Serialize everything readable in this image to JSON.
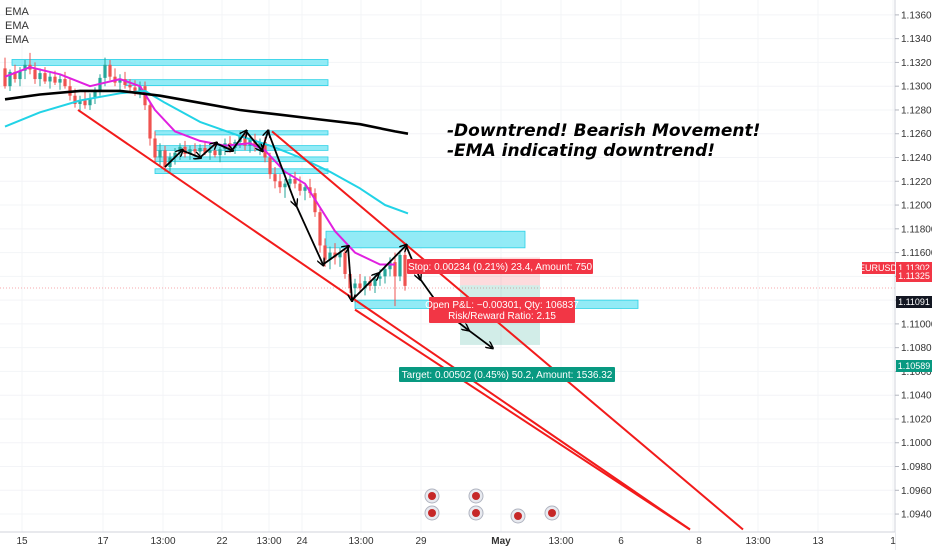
{
  "chart_data": {
    "type": "candlestick",
    "symbol": "EURUSD",
    "legend": [
      "EMA",
      "EMA",
      "EMA"
    ],
    "y_axis": {
      "ticks": [
        "1.13600",
        "1.13400",
        "1.13200",
        "1.13000",
        "1.12800",
        "1.12600",
        "1.12400",
        "1.12200",
        "1.12000",
        "1.11800",
        "1.11600",
        "1.11400",
        "1.11200",
        "1.11000",
        "1.10800",
        "1.10600",
        "1.10400",
        "1.10200",
        "1.10000",
        "1.09800",
        "1.09600",
        "1.09400"
      ],
      "ylim": [
        1.0935,
        1.137
      ]
    },
    "x_axis": {
      "ticks": [
        "15",
        "17",
        "13:00",
        "22",
        "13:00",
        "24",
        "13:00",
        "29",
        "May",
        "13:00",
        "6",
        "8",
        "13:00",
        "13",
        "1"
      ]
    },
    "price_tags": [
      {
        "label": "EURUSD",
        "value": "1.11302",
        "color": "#f23645"
      },
      {
        "label": "",
        "value": "1.11325",
        "color": "#f23645"
      },
      {
        "label": "",
        "value": "1.11091",
        "color": "#131722"
      },
      {
        "label": "",
        "value": "1.10589",
        "color": "#089981"
      }
    ],
    "annotations": [
      "-Downtrend! Bearish Movement!",
      "-EMA indicating downtrend!"
    ],
    "position": {
      "stop_text": "Stop: 0.00234 (0.21%) 23.4, Amount: 750",
      "pnl_text": "Open P&L: −0.00301, Qty: 106837",
      "rr_text": "Risk/Reward Ratio: 2.15",
      "target_text": "Target: 0.00502 (0.45%) 50.2, Amount: 1536.32",
      "entry": 1.11325,
      "stop": 1.11559,
      "target": 1.10823
    },
    "candles": [
      {
        "x": 5,
        "o": 1.1315,
        "h": 1.1324,
        "l": 1.1298,
        "c": 1.13
      },
      {
        "x": 10,
        "o": 1.13,
        "h": 1.1314,
        "l": 1.1296,
        "c": 1.1312
      },
      {
        "x": 15,
        "o": 1.1312,
        "h": 1.1318,
        "l": 1.1303,
        "c": 1.1306
      },
      {
        "x": 20,
        "o": 1.1306,
        "h": 1.1316,
        "l": 1.13,
        "c": 1.1313
      },
      {
        "x": 25,
        "o": 1.1313,
        "h": 1.1322,
        "l": 1.1306,
        "c": 1.1318
      },
      {
        "x": 30,
        "o": 1.1318,
        "h": 1.1328,
        "l": 1.131,
        "c": 1.1314
      },
      {
        "x": 35,
        "o": 1.1314,
        "h": 1.132,
        "l": 1.1302,
        "c": 1.1306
      },
      {
        "x": 40,
        "o": 1.1306,
        "h": 1.1315,
        "l": 1.13,
        "c": 1.1311
      },
      {
        "x": 45,
        "o": 1.1311,
        "h": 1.1316,
        "l": 1.1302,
        "c": 1.1304
      },
      {
        "x": 50,
        "o": 1.1304,
        "h": 1.1312,
        "l": 1.1298,
        "c": 1.1308
      },
      {
        "x": 55,
        "o": 1.1308,
        "h": 1.1313,
        "l": 1.1301,
        "c": 1.1303
      },
      {
        "x": 60,
        "o": 1.1303,
        "h": 1.131,
        "l": 1.1297,
        "c": 1.1306
      },
      {
        "x": 65,
        "o": 1.1306,
        "h": 1.1312,
        "l": 1.1298,
        "c": 1.13
      },
      {
        "x": 70,
        "o": 1.13,
        "h": 1.1306,
        "l": 1.1288,
        "c": 1.1292
      },
      {
        "x": 75,
        "o": 1.1292,
        "h": 1.1298,
        "l": 1.1282,
        "c": 1.1285
      },
      {
        "x": 80,
        "o": 1.1285,
        "h": 1.1292,
        "l": 1.1278,
        "c": 1.1288
      },
      {
        "x": 85,
        "o": 1.1288,
        "h": 1.1296,
        "l": 1.1281,
        "c": 1.1284
      },
      {
        "x": 90,
        "o": 1.1284,
        "h": 1.1294,
        "l": 1.128,
        "c": 1.129
      },
      {
        "x": 95,
        "o": 1.129,
        "h": 1.1299,
        "l": 1.1285,
        "c": 1.1296
      },
      {
        "x": 100,
        "o": 1.1296,
        "h": 1.131,
        "l": 1.1292,
        "c": 1.1307
      },
      {
        "x": 105,
        "o": 1.1307,
        "h": 1.1324,
        "l": 1.13,
        "c": 1.1318
      },
      {
        "x": 110,
        "o": 1.1318,
        "h": 1.1322,
        "l": 1.1305,
        "c": 1.1308
      },
      {
        "x": 115,
        "o": 1.1308,
        "h": 1.1315,
        "l": 1.13,
        "c": 1.1303
      },
      {
        "x": 120,
        "o": 1.1303,
        "h": 1.131,
        "l": 1.1296,
        "c": 1.1306
      },
      {
        "x": 125,
        "o": 1.1306,
        "h": 1.1312,
        "l": 1.1298,
        "c": 1.1301
      },
      {
        "x": 130,
        "o": 1.1301,
        "h": 1.1306,
        "l": 1.1295,
        "c": 1.1299
      },
      {
        "x": 135,
        "o": 1.1299,
        "h": 1.1305,
        "l": 1.1292,
        "c": 1.1296
      },
      {
        "x": 140,
        "o": 1.1296,
        "h": 1.1304,
        "l": 1.129,
        "c": 1.13
      },
      {
        "x": 145,
        "o": 1.13,
        "h": 1.1304,
        "l": 1.128,
        "c": 1.1284
      },
      {
        "x": 150,
        "o": 1.1284,
        "h": 1.1288,
        "l": 1.125,
        "c": 1.1256
      },
      {
        "x": 155,
        "o": 1.1256,
        "h": 1.1262,
        "l": 1.1236,
        "c": 1.124
      },
      {
        "x": 160,
        "o": 1.124,
        "h": 1.1252,
        "l": 1.1232,
        "c": 1.1246
      },
      {
        "x": 165,
        "o": 1.1246,
        "h": 1.125,
        "l": 1.1228,
        "c": 1.1232
      },
      {
        "x": 170,
        "o": 1.1232,
        "h": 1.1244,
        "l": 1.1228,
        "c": 1.124
      },
      {
        "x": 175,
        "o": 1.124,
        "h": 1.1248,
        "l": 1.1234,
        "c": 1.1244
      },
      {
        "x": 180,
        "o": 1.1244,
        "h": 1.1252,
        "l": 1.1238,
        "c": 1.1249
      },
      {
        "x": 185,
        "o": 1.1249,
        "h": 1.1254,
        "l": 1.124,
        "c": 1.1243
      },
      {
        "x": 190,
        "o": 1.1243,
        "h": 1.125,
        "l": 1.1238,
        "c": 1.1247
      },
      {
        "x": 195,
        "o": 1.1247,
        "h": 1.1252,
        "l": 1.1241,
        "c": 1.1245
      },
      {
        "x": 200,
        "o": 1.1245,
        "h": 1.1251,
        "l": 1.124,
        "c": 1.1248
      },
      {
        "x": 205,
        "o": 1.1248,
        "h": 1.1253,
        "l": 1.1242,
        "c": 1.1244
      },
      {
        "x": 210,
        "o": 1.1244,
        "h": 1.125,
        "l": 1.1238,
        "c": 1.1246
      },
      {
        "x": 215,
        "o": 1.1246,
        "h": 1.1252,
        "l": 1.124,
        "c": 1.1242
      },
      {
        "x": 220,
        "o": 1.1242,
        "h": 1.1249,
        "l": 1.1236,
        "c": 1.1247
      },
      {
        "x": 225,
        "o": 1.1247,
        "h": 1.1256,
        "l": 1.1242,
        "c": 1.1252
      },
      {
        "x": 230,
        "o": 1.1252,
        "h": 1.1258,
        "l": 1.1244,
        "c": 1.1248
      },
      {
        "x": 235,
        "o": 1.1248,
        "h": 1.1255,
        "l": 1.1243,
        "c": 1.1253
      },
      {
        "x": 240,
        "o": 1.1253,
        "h": 1.1262,
        "l": 1.1248,
        "c": 1.1258
      },
      {
        "x": 245,
        "o": 1.1258,
        "h": 1.1262,
        "l": 1.1246,
        "c": 1.125
      },
      {
        "x": 250,
        "o": 1.125,
        "h": 1.1258,
        "l": 1.1244,
        "c": 1.1255
      },
      {
        "x": 255,
        "o": 1.1255,
        "h": 1.126,
        "l": 1.1245,
        "c": 1.1249
      },
      {
        "x": 260,
        "o": 1.1249,
        "h": 1.1256,
        "l": 1.1242,
        "c": 1.1253
      },
      {
        "x": 265,
        "o": 1.1253,
        "h": 1.1257,
        "l": 1.1236,
        "c": 1.124
      },
      {
        "x": 270,
        "o": 1.124,
        "h": 1.1244,
        "l": 1.1222,
        "c": 1.1226
      },
      {
        "x": 275,
        "o": 1.1226,
        "h": 1.1232,
        "l": 1.1214,
        "c": 1.122
      },
      {
        "x": 280,
        "o": 1.122,
        "h": 1.1226,
        "l": 1.121,
        "c": 1.1215
      },
      {
        "x": 285,
        "o": 1.1215,
        "h": 1.1222,
        "l": 1.1206,
        "c": 1.1218
      },
      {
        "x": 290,
        "o": 1.1218,
        "h": 1.1226,
        "l": 1.1212,
        "c": 1.1222
      },
      {
        "x": 295,
        "o": 1.1222,
        "h": 1.1228,
        "l": 1.1214,
        "c": 1.1218
      },
      {
        "x": 300,
        "o": 1.1218,
        "h": 1.1224,
        "l": 1.1208,
        "c": 1.1212
      },
      {
        "x": 305,
        "o": 1.1212,
        "h": 1.1218,
        "l": 1.1204,
        "c": 1.1215
      },
      {
        "x": 310,
        "o": 1.1215,
        "h": 1.1222,
        "l": 1.1206,
        "c": 1.121
      },
      {
        "x": 315,
        "o": 1.121,
        "h": 1.1214,
        "l": 1.119,
        "c": 1.1194
      },
      {
        "x": 320,
        "o": 1.1194,
        "h": 1.1198,
        "l": 1.116,
        "c": 1.1166
      },
      {
        "x": 325,
        "o": 1.1166,
        "h": 1.1172,
        "l": 1.1148,
        "c": 1.1154
      },
      {
        "x": 330,
        "o": 1.1154,
        "h": 1.1165,
        "l": 1.1146,
        "c": 1.116
      },
      {
        "x": 335,
        "o": 1.116,
        "h": 1.1168,
        "l": 1.115,
        "c": 1.1156
      },
      {
        "x": 340,
        "o": 1.1156,
        "h": 1.1164,
        "l": 1.1148,
        "c": 1.116
      },
      {
        "x": 345,
        "o": 1.116,
        "h": 1.1164,
        "l": 1.1138,
        "c": 1.1142
      },
      {
        "x": 350,
        "o": 1.1142,
        "h": 1.1148,
        "l": 1.1126,
        "c": 1.113
      },
      {
        "x": 355,
        "o": 1.113,
        "h": 1.1138,
        "l": 1.1118,
        "c": 1.1134
      },
      {
        "x": 360,
        "o": 1.1134,
        "h": 1.1142,
        "l": 1.1126,
        "c": 1.113
      },
      {
        "x": 365,
        "o": 1.113,
        "h": 1.114,
        "l": 1.1124,
        "c": 1.1136
      },
      {
        "x": 370,
        "o": 1.1136,
        "h": 1.114,
        "l": 1.1128,
        "c": 1.1132
      },
      {
        "x": 375,
        "o": 1.1132,
        "h": 1.1142,
        "l": 1.1126,
        "c": 1.1138
      },
      {
        "x": 380,
        "o": 1.1138,
        "h": 1.1146,
        "l": 1.1132,
        "c": 1.114
      },
      {
        "x": 385,
        "o": 1.114,
        "h": 1.115,
        "l": 1.1134,
        "c": 1.1146
      },
      {
        "x": 390,
        "o": 1.1146,
        "h": 1.1156,
        "l": 1.114,
        "c": 1.1152
      },
      {
        "x": 395,
        "o": 1.1152,
        "h": 1.116,
        "l": 1.1115,
        "c": 1.114
      },
      {
        "x": 400,
        "o": 1.114,
        "h": 1.1162,
        "l": 1.1136,
        "c": 1.1158
      },
      {
        "x": 405,
        "o": 1.1158,
        "h": 1.1164,
        "l": 1.1128,
        "c": 1.1132
      }
    ],
    "ema_series": [
      {
        "color": "#e020e0",
        "points": [
          [
            5,
            1.1308
          ],
          [
            30,
            1.1316
          ],
          [
            60,
            1.131
          ],
          [
            90,
            1.13
          ],
          [
            120,
            1.1306
          ],
          [
            140,
            1.13
          ],
          [
            155,
            1.128
          ],
          [
            175,
            1.1262
          ],
          [
            200,
            1.1254
          ],
          [
            225,
            1.125
          ],
          [
            250,
            1.1252
          ],
          [
            265,
            1.1246
          ],
          [
            285,
            1.1228
          ],
          [
            305,
            1.1218
          ],
          [
            320,
            1.1198
          ],
          [
            335,
            1.1178
          ],
          [
            355,
            1.116
          ],
          [
            380,
            1.115
          ],
          [
            395,
            1.115
          ]
        ]
      },
      {
        "color": "#22d3e6",
        "points": [
          [
            5,
            1.1266
          ],
          [
            40,
            1.1278
          ],
          [
            80,
            1.1288
          ],
          [
            120,
            1.1294
          ],
          [
            145,
            1.1296
          ],
          [
            165,
            1.1286
          ],
          [
            200,
            1.127
          ],
          [
            240,
            1.1258
          ],
          [
            270,
            1.125
          ],
          [
            300,
            1.124
          ],
          [
            330,
            1.1228
          ],
          [
            360,
            1.1214
          ],
          [
            385,
            1.12
          ],
          [
            408,
            1.1193
          ]
        ]
      },
      {
        "color": "#000000",
        "points": [
          [
            5,
            1.1289
          ],
          [
            40,
            1.1293
          ],
          [
            80,
            1.1296
          ],
          [
            120,
            1.1296
          ],
          [
            160,
            1.1292
          ],
          [
            200,
            1.1286
          ],
          [
            240,
            1.128
          ],
          [
            280,
            1.1276
          ],
          [
            320,
            1.1272
          ],
          [
            360,
            1.1268
          ],
          [
            395,
            1.1262
          ],
          [
            408,
            1.126
          ]
        ]
      }
    ],
    "zones": [
      {
        "x1": 12,
        "x2": 328,
        "y1": 1.13225,
        "y2": 1.13175
      },
      {
        "x1": 126,
        "x2": 328,
        "y1": 1.13055,
        "y2": 1.13005
      },
      {
        "x1": 155,
        "x2": 328,
        "y1": 1.12625,
        "y2": 1.1259
      },
      {
        "x1": 155,
        "x2": 328,
        "y1": 1.125,
        "y2": 1.1246
      },
      {
        "x1": 155,
        "x2": 328,
        "y1": 1.12405,
        "y2": 1.12365
      },
      {
        "x1": 155,
        "x2": 328,
        "y1": 1.12305,
        "y2": 1.12265
      },
      {
        "x1": 326,
        "x2": 525,
        "y1": 1.1178,
        "y2": 1.1164
      },
      {
        "x1": 355,
        "x2": 638,
        "y1": 1.112,
        "y2": 1.1113
      }
    ],
    "channel_lines": [
      {
        "x1": 78,
        "y1": 1.128,
        "x2": 690,
        "y2": 1.0927
      },
      {
        "x1": 272,
        "y1": 1.1262,
        "x2": 743,
        "y2": 1.0927
      },
      {
        "x1": 355,
        "y1": 1.1112,
        "x2": 690,
        "y2": 1.0927
      }
    ],
    "zigzags": [
      [
        [
          165,
          1.1232
        ],
        [
          182,
          1.1246
        ],
        [
          200,
          1.124
        ],
        [
          216,
          1.1252
        ],
        [
          232,
          1.1246
        ],
        [
          246,
          1.1262
        ],
        [
          262,
          1.1246
        ],
        [
          268,
          1.1262
        ],
        [
          296,
          1.12
        ],
        [
          323,
          1.115
        ],
        [
          348,
          1.1165
        ],
        [
          352,
          1.112
        ],
        [
          378,
          1.1142
        ],
        [
          406,
          1.1166
        ],
        [
          420,
          1.1138
        ],
        [
          442,
          1.1112
        ],
        [
          468,
          1.1095
        ],
        [
          492,
          1.108
        ]
      ]
    ]
  }
}
